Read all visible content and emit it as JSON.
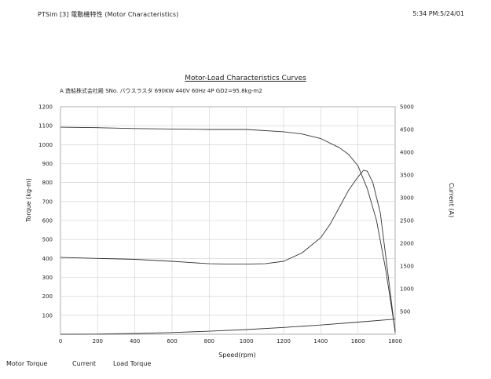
{
  "header": {
    "left": "PTSim [3] 電動機特性 (Motor Characteristics)",
    "right": "5:34 PM:5/24/01"
  },
  "legend": {
    "motor_torque": "Motor Torque",
    "current": "Current",
    "load_torque": "Load Torque"
  },
  "chart_data": {
    "type": "line",
    "title": "Motor-Load Characteristics Curves",
    "subtitle": "A 造船株式会社殿 SNo. バウスラスタ 690KW 440V 60Hz 4P GD2=95.8kg-m2",
    "xlabel": "Speed(rpm)",
    "ylabel_left": "Torque (kg-m)",
    "ylabel_right": "Current (A)",
    "xlim": [
      0,
      1800
    ],
    "ylim_left": [
      0,
      1200
    ],
    "ylim_right": [
      0,
      5000
    ],
    "x_ticks": [
      "0",
      "200",
      "400",
      "600",
      "800",
      "1000",
      "1200",
      "1400",
      "1600",
      "1800"
    ],
    "y_ticks_left": [
      "1200",
      "1100",
      "1000",
      "900",
      "800",
      "700",
      "600",
      "500",
      "400",
      "300",
      "200",
      "100"
    ],
    "y_ticks_right": [
      "5000",
      "4500",
      "4000",
      "3500",
      "3000",
      "2500",
      "2000",
      "1500",
      "1000",
      "500"
    ],
    "grid": true,
    "series": [
      {
        "name": "Current",
        "axis": "right",
        "x": [
          0,
          200,
          400,
          600,
          800,
          1000,
          1200,
          1300,
          1400,
          1500,
          1550,
          1600,
          1650,
          1700,
          1750,
          1780,
          1800
        ],
        "values": [
          4550,
          4540,
          4520,
          4510,
          4500,
          4500,
          4450,
          4400,
          4300,
          4100,
          3950,
          3700,
          3200,
          2500,
          1400,
          600,
          80
        ]
      },
      {
        "name": "Motor Torque",
        "axis": "left",
        "x": [
          0,
          200,
          400,
          600,
          700,
          800,
          900,
          1000,
          1100,
          1200,
          1300,
          1400,
          1450,
          1500,
          1550,
          1600,
          1630,
          1650,
          1680,
          1720,
          1760,
          1800
        ],
        "values": [
          405,
          400,
          395,
          385,
          378,
          372,
          370,
          370,
          372,
          385,
          430,
          510,
          580,
          670,
          760,
          830,
          865,
          860,
          800,
          640,
          330,
          10
        ]
      },
      {
        "name": "Load Torque",
        "axis": "left",
        "x": [
          0,
          200,
          400,
          600,
          800,
          1000,
          1200,
          1400,
          1600,
          1800
        ],
        "values": [
          0,
          1,
          4,
          9,
          16,
          25,
          36,
          49,
          64,
          80
        ]
      }
    ]
  }
}
